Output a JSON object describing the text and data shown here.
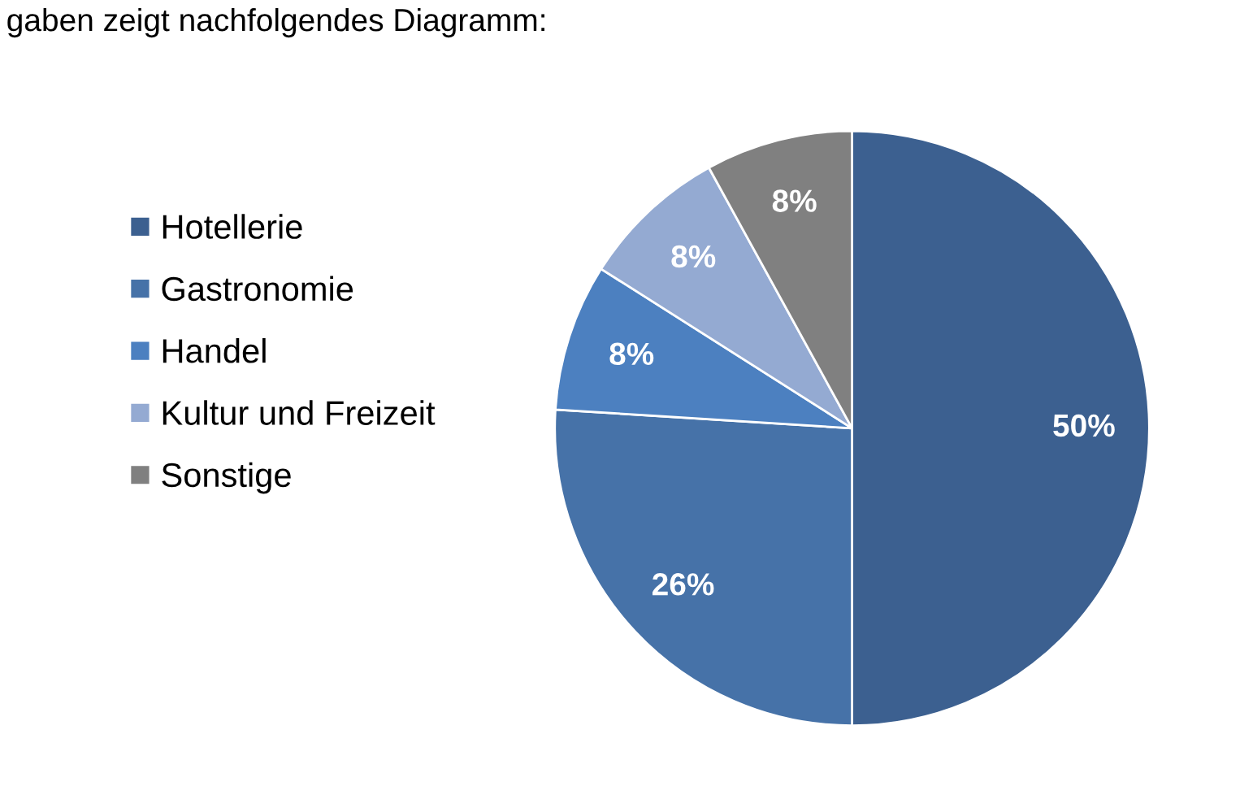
{
  "chart_data": {
    "type": "pie",
    "categories": [
      "Hotellerie",
      "Gastronomie",
      "Handel",
      "Kultur und Freizeit",
      "Sonstige"
    ],
    "values": [
      50,
      26,
      8,
      8,
      8
    ],
    "colors": [
      "#3c6090",
      "#4672a8",
      "#4c80c0",
      "#94aad2",
      "#808080"
    ],
    "value_labels": [
      "50%",
      "26%",
      "8%",
      "8%",
      "8%"
    ],
    "legend": "left",
    "annotations": [
      "gaben zeigt nachfolgendes Diagramm:"
    ]
  }
}
